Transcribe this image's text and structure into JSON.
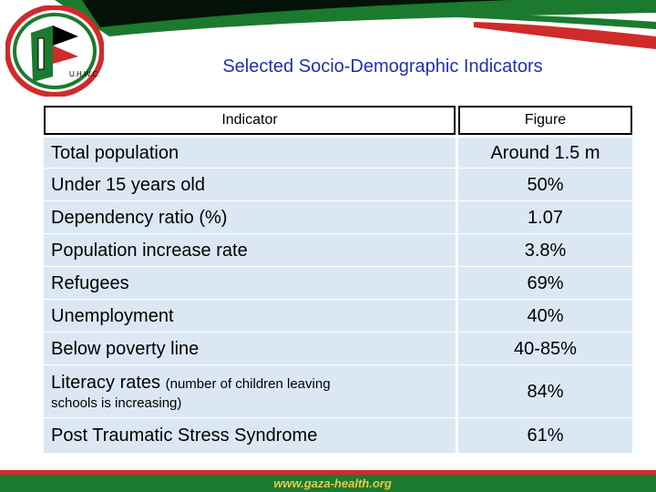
{
  "title": "Selected Socio-Demographic Indicators",
  "logo_text": "U.H.W.C.",
  "table": {
    "header": {
      "indicator": "Indicator",
      "figure": "Figure"
    },
    "rows": [
      {
        "indicator": "Total population",
        "figure": "Around 1.5 m"
      },
      {
        "indicator": "Under 15 years old",
        "figure": "50%"
      },
      {
        "indicator": "Dependency ratio (%)",
        "figure": "1.07"
      },
      {
        "indicator": "Population increase rate",
        "figure": "3.8%"
      },
      {
        "indicator": "Refugees",
        "figure": "69%"
      },
      {
        "indicator": "Unemployment",
        "figure": "40%"
      },
      {
        "indicator": "Below poverty line",
        "figure": "40-85%"
      },
      {
        "indicator": "Literacy rates",
        "note_a": "(number of children leaving",
        "note_b": "schools is increasing)",
        "figure": "84%"
      },
      {
        "indicator": "Post Traumatic Stress Syndrome",
        "figure": "61%"
      }
    ]
  },
  "footer": {
    "url": "www.gaza-health.org"
  },
  "colors": {
    "title": "#1e2fb5",
    "row_fill": "#dbe8f4",
    "green": "#1b7a2e",
    "red": "#cf2b2b"
  }
}
